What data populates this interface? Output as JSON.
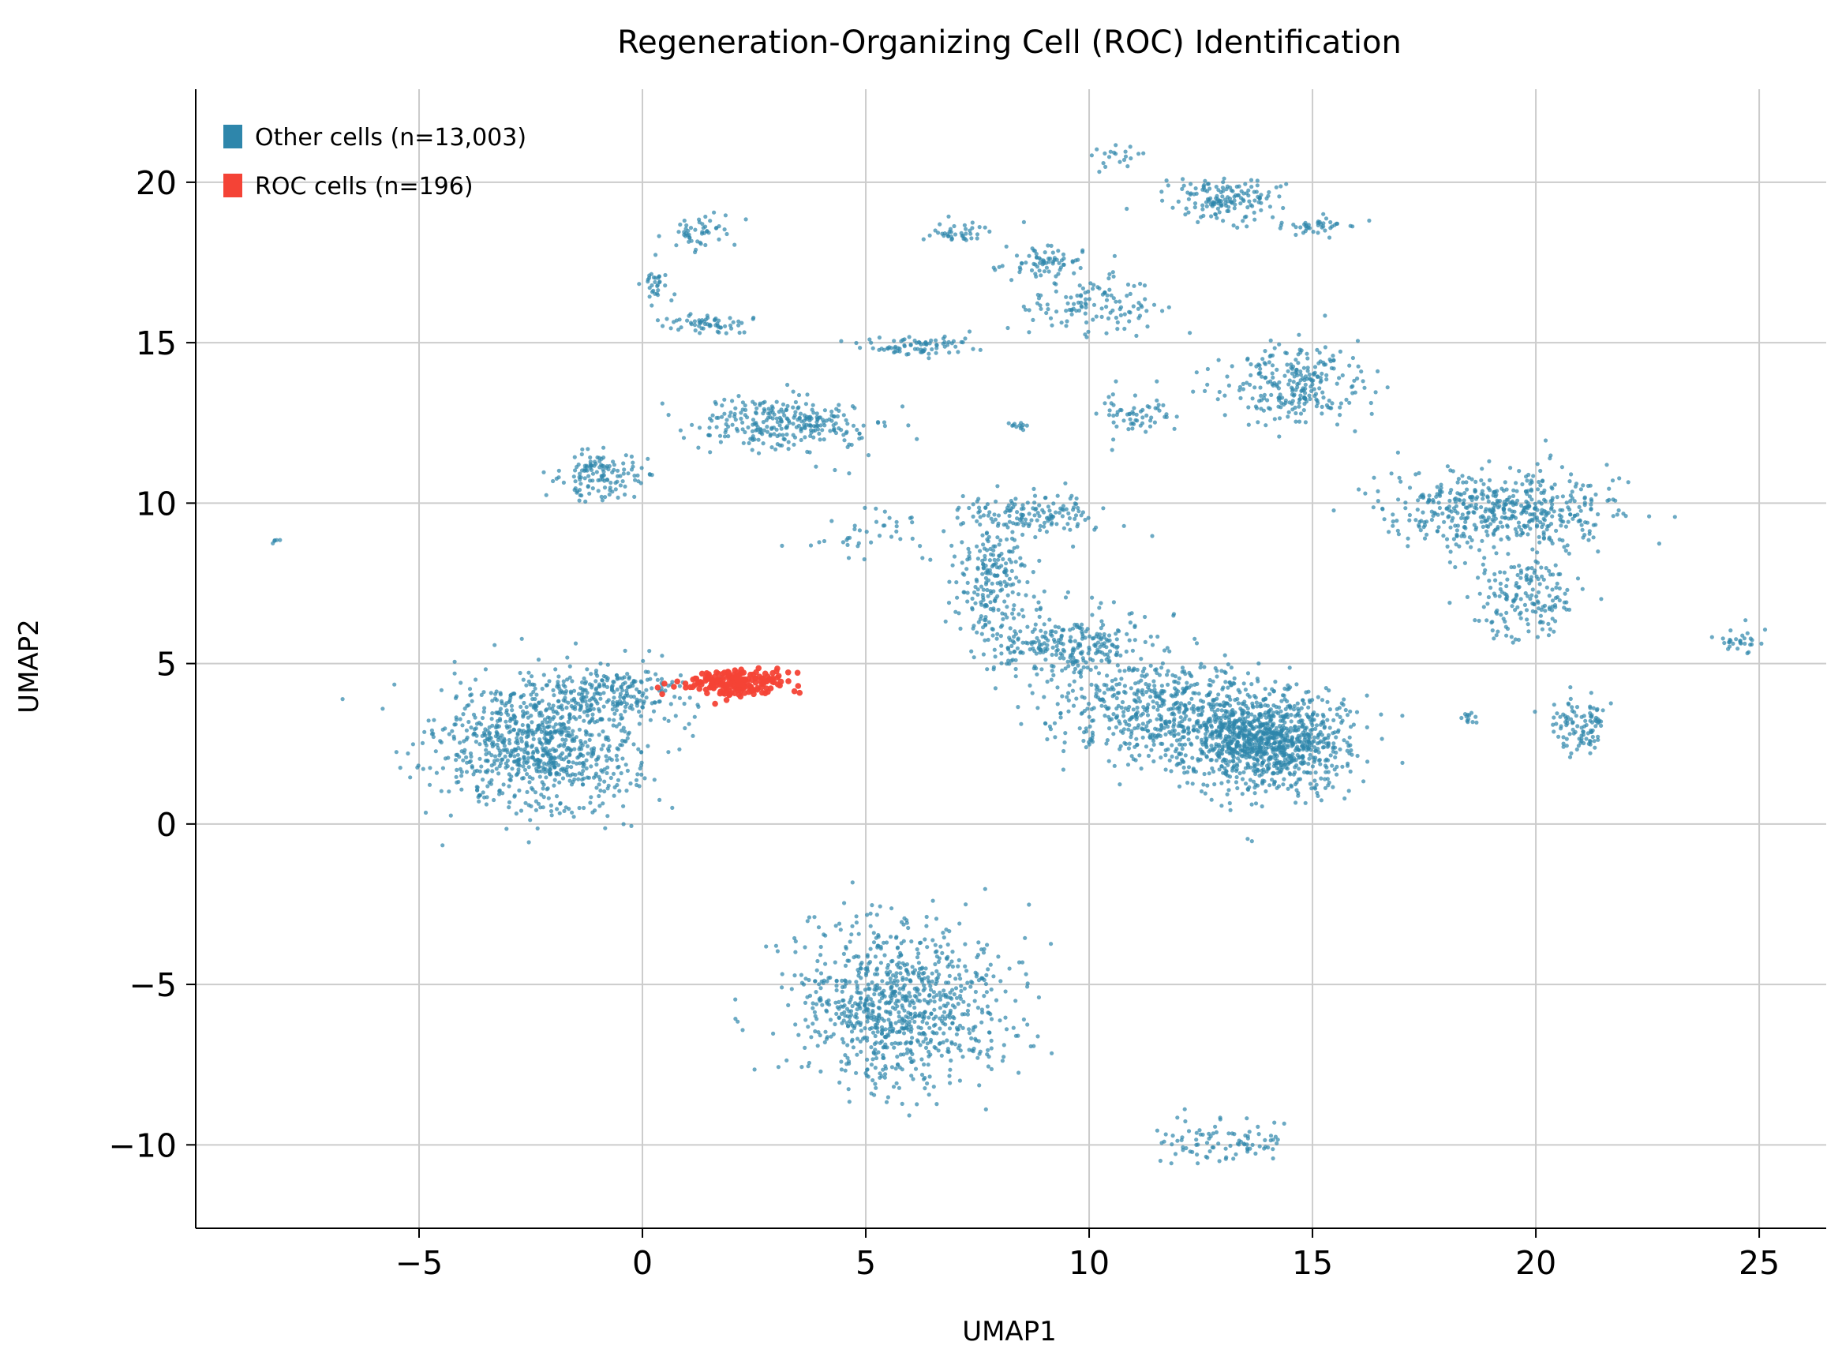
{
  "chart_data": {
    "type": "scatter",
    "title": "Regeneration-Organizing Cell (ROC) Identification",
    "xlabel": "UMAP1",
    "ylabel": "UMAP2",
    "xlim": [
      -10,
      26.5
    ],
    "ylim": [
      -12.6,
      22.9
    ],
    "xticks": [
      -5,
      0,
      5,
      10,
      15,
      20,
      25
    ],
    "xtick_labels": [
      "−5",
      "0",
      "5",
      "10",
      "15",
      "20",
      "25"
    ],
    "yticks": [
      -10,
      -5,
      0,
      5,
      10,
      15,
      20
    ],
    "ytick_labels": [
      "−10",
      "−5",
      "0",
      "5",
      "10",
      "15",
      "20"
    ],
    "grid": true,
    "legend_position": "top-left",
    "series": [
      {
        "name": "Other cells (n=13,003)",
        "color": "#2e86ab",
        "count": 13003,
        "clusters": [
          {
            "cx": -2.3,
            "cy": 2.4,
            "sx": 1.3,
            "sy": 1.2,
            "n": 900
          },
          {
            "cx": -0.6,
            "cy": 4.2,
            "sx": 0.9,
            "sy": 0.5,
            "n": 200
          },
          {
            "cx": 13.9,
            "cy": 2.6,
            "sx": 1.1,
            "sy": 0.9,
            "n": 1100
          },
          {
            "cx": 11.5,
            "cy": 3.6,
            "sx": 1.5,
            "sy": 0.9,
            "n": 500
          },
          {
            "cx": 9.4,
            "cy": 5.6,
            "sx": 1.0,
            "sy": 0.6,
            "n": 280
          },
          {
            "cx": 7.8,
            "cy": 7.6,
            "sx": 0.5,
            "sy": 1.0,
            "n": 200
          },
          {
            "cx": 8.8,
            "cy": 9.6,
            "sx": 0.9,
            "sy": 0.4,
            "n": 140
          },
          {
            "cx": 5.8,
            "cy": -5.6,
            "sx": 1.4,
            "sy": 1.5,
            "n": 900
          },
          {
            "cx": 19.2,
            "cy": 9.8,
            "sx": 1.5,
            "sy": 0.7,
            "n": 500
          },
          {
            "cx": 19.7,
            "cy": 7.0,
            "sx": 0.7,
            "sy": 0.8,
            "n": 170
          },
          {
            "cx": 21.0,
            "cy": 3.1,
            "sx": 0.4,
            "sy": 0.5,
            "n": 100
          },
          {
            "cx": 3.2,
            "cy": 12.5,
            "sx": 1.2,
            "sy": 0.5,
            "n": 280
          },
          {
            "cx": -1.0,
            "cy": 10.9,
            "sx": 0.6,
            "sy": 0.5,
            "n": 130
          },
          {
            "cx": 14.6,
            "cy": 13.7,
            "sx": 0.9,
            "sy": 0.7,
            "n": 260
          },
          {
            "cx": 13.1,
            "cy": 19.5,
            "sx": 0.8,
            "sy": 0.4,
            "n": 150
          },
          {
            "cx": 9.0,
            "cy": 17.5,
            "sx": 0.6,
            "sy": 0.3,
            "n": 70
          },
          {
            "cx": 1.5,
            "cy": 15.6,
            "sx": 0.6,
            "sy": 0.2,
            "n": 60
          },
          {
            "cx": 1.2,
            "cy": 18.4,
            "sx": 0.4,
            "sy": 0.3,
            "n": 50
          },
          {
            "cx": 0.3,
            "cy": 16.8,
            "sx": 0.2,
            "sy": 0.3,
            "n": 30
          },
          {
            "cx": 6.1,
            "cy": 14.9,
            "sx": 0.8,
            "sy": 0.2,
            "n": 80
          },
          {
            "cx": 6.9,
            "cy": 18.4,
            "sx": 0.5,
            "sy": 0.2,
            "n": 40
          },
          {
            "cx": 9.8,
            "cy": 16.2,
            "sx": 1.0,
            "sy": 0.5,
            "n": 120
          },
          {
            "cx": 11.0,
            "cy": 12.8,
            "sx": 0.5,
            "sy": 0.4,
            "n": 60
          },
          {
            "cx": 15.0,
            "cy": 18.6,
            "sx": 0.5,
            "sy": 0.2,
            "n": 40
          },
          {
            "cx": 13.0,
            "cy": -9.9,
            "sx": 0.9,
            "sy": 0.4,
            "n": 90
          },
          {
            "cx": 24.5,
            "cy": 5.7,
            "sx": 0.3,
            "sy": 0.25,
            "n": 30
          },
          {
            "cx": 18.5,
            "cy": 3.3,
            "sx": 0.1,
            "sy": 0.15,
            "n": 12
          },
          {
            "cx": 5.0,
            "cy": 9.0,
            "sx": 0.8,
            "sy": 0.4,
            "n": 40
          },
          {
            "cx": 8.4,
            "cy": 12.4,
            "sx": 0.15,
            "sy": 0.1,
            "n": 12
          },
          {
            "cx": -8.2,
            "cy": 8.8,
            "sx": 0.05,
            "sy": 0.05,
            "n": 5
          },
          {
            "cx": 10.5,
            "cy": 20.8,
            "sx": 0.3,
            "sy": 0.2,
            "n": 20
          }
        ]
      },
      {
        "name": "ROC cells (n=196)",
        "color": "#f44336",
        "count": 196,
        "clusters": [
          {
            "cx": 2.1,
            "cy": 4.4,
            "sx": 0.7,
            "sy": 0.25,
            "n": 196
          }
        ]
      }
    ]
  }
}
